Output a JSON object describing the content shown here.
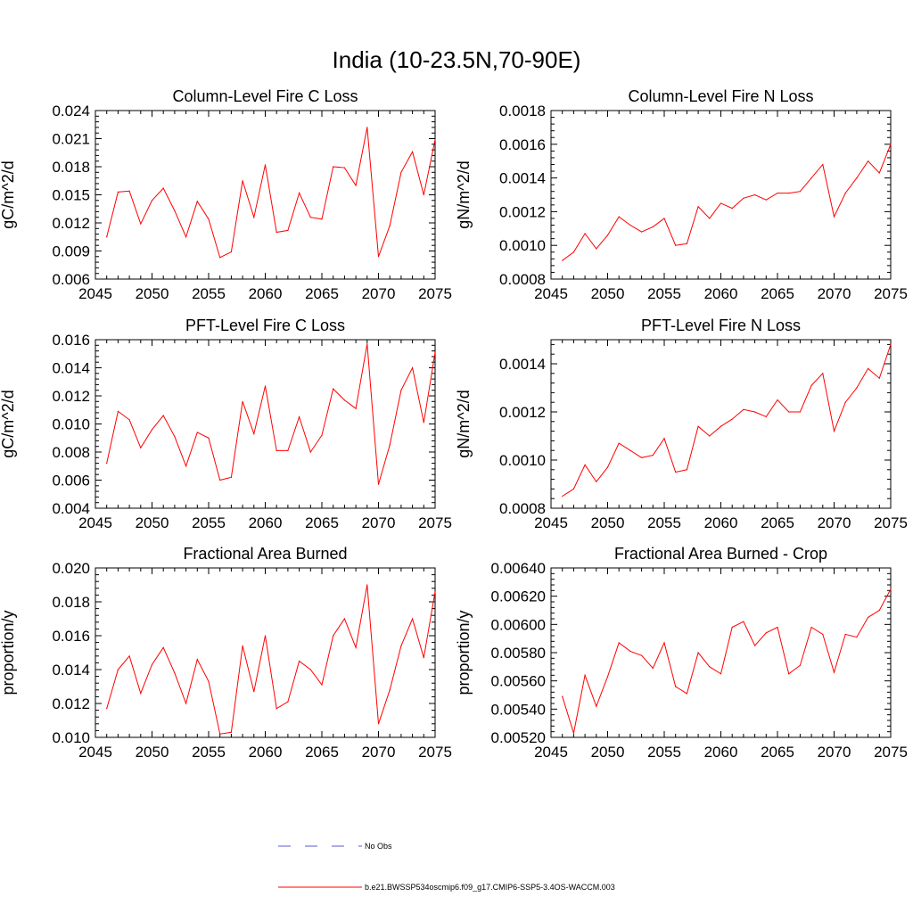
{
  "figure": {
    "title": "India (10-23.5N,70-90E)"
  },
  "legend": {
    "placement": "bottom-center",
    "entries": [
      {
        "label": "No Obs",
        "color": "#5a5ad0",
        "style": "dashed"
      },
      {
        "label": "b.e21.BWSSP534oscmip6.f09_g17.CMIP6-SSP5-3.4OS-WACCM.003",
        "color": "#ff0000",
        "style": "solid"
      }
    ]
  },
  "chart_data": [
    {
      "type": "line",
      "title": "Column-Level Fire C Loss",
      "ylabel": "gC/m^2/d",
      "xlim": [
        2045,
        2075
      ],
      "ylim": [
        0.006,
        0.024
      ],
      "xticks": [
        "2045",
        "2050",
        "2055",
        "2060",
        "2065",
        "2070",
        "2075"
      ],
      "yticks": [
        "0.006",
        "0.009",
        "0.012",
        "0.015",
        "0.018",
        "0.021",
        "0.024"
      ],
      "series": [
        {
          "name": "b.e21.BWSSP534oscmip6.f09_g17.CMIP6-SSP5-3.4OS-WACCM.003",
          "color": "#ff0000",
          "x": [
            2046,
            2047,
            2048,
            2049,
            2050,
            2051,
            2052,
            2053,
            2054,
            2055,
            2056,
            2057,
            2058,
            2059,
            2060,
            2061,
            2062,
            2063,
            2064,
            2065,
            2066,
            2067,
            2068,
            2069,
            2070,
            2071,
            2072,
            2073,
            2074,
            2075
          ],
          "values": [
            0.0105,
            0.0153,
            0.0154,
            0.0119,
            0.0144,
            0.0157,
            0.0133,
            0.0105,
            0.0143,
            0.0124,
            0.0083,
            0.0089,
            0.0165,
            0.0126,
            0.0182,
            0.011,
            0.0112,
            0.0152,
            0.0126,
            0.0124,
            0.018,
            0.0179,
            0.016,
            0.0222,
            0.0084,
            0.0117,
            0.0174,
            0.0196,
            0.015,
            0.0209
          ]
        }
      ]
    },
    {
      "type": "line",
      "title": "Column-Level Fire N Loss",
      "ylabel": "gN/m^2/d",
      "xlim": [
        2045,
        2075
      ],
      "ylim": [
        0.0008,
        0.0018
      ],
      "xticks": [
        "2045",
        "2050",
        "2055",
        "2060",
        "2065",
        "2070",
        "2075"
      ],
      "yticks": [
        "0.0008",
        "0.0010",
        "0.0012",
        "0.0014",
        "0.0016",
        "0.0018"
      ],
      "series": [
        {
          "name": "b.e21.BWSSP534oscmip6.f09_g17.CMIP6-SSP5-3.4OS-WACCM.003",
          "color": "#ff0000",
          "x": [
            2046,
            2047,
            2048,
            2049,
            2050,
            2051,
            2052,
            2053,
            2054,
            2055,
            2056,
            2057,
            2058,
            2059,
            2060,
            2061,
            2062,
            2063,
            2064,
            2065,
            2066,
            2067,
            2068,
            2069,
            2070,
            2071,
            2072,
            2073,
            2074,
            2075
          ],
          "values": [
            0.00091,
            0.00096,
            0.00107,
            0.00098,
            0.00106,
            0.00117,
            0.00112,
            0.00108,
            0.00111,
            0.00116,
            0.001,
            0.00101,
            0.00123,
            0.00116,
            0.00125,
            0.00122,
            0.00128,
            0.0013,
            0.00127,
            0.00131,
            0.00131,
            0.00132,
            0.0014,
            0.00148,
            0.00117,
            0.00131,
            0.0014,
            0.0015,
            0.00143,
            0.0016
          ]
        }
      ]
    },
    {
      "type": "line",
      "title": "PFT-Level Fire C Loss",
      "ylabel": "gC/m^2/d",
      "xlim": [
        2045,
        2075
      ],
      "ylim": [
        0.004,
        0.016
      ],
      "xticks": [
        "2045",
        "2050",
        "2055",
        "2060",
        "2065",
        "2070",
        "2075"
      ],
      "yticks": [
        "0.004",
        "0.006",
        "0.008",
        "0.010",
        "0.012",
        "0.014",
        "0.016"
      ],
      "series": [
        {
          "name": "b.e21.BWSSP534oscmip6.f09_g17.CMIP6-SSP5-3.4OS-WACCM.003",
          "color": "#ff0000",
          "x": [
            2046,
            2047,
            2048,
            2049,
            2050,
            2051,
            2052,
            2053,
            2054,
            2055,
            2056,
            2057,
            2058,
            2059,
            2060,
            2061,
            2062,
            2063,
            2064,
            2065,
            2066,
            2067,
            2068,
            2069,
            2070,
            2071,
            2072,
            2073,
            2074,
            2075
          ],
          "values": [
            0.0072,
            0.0109,
            0.0103,
            0.0083,
            0.0096,
            0.0106,
            0.0091,
            0.007,
            0.0094,
            0.009,
            0.006,
            0.0062,
            0.0116,
            0.0093,
            0.0127,
            0.0081,
            0.0081,
            0.0105,
            0.008,
            0.0092,
            0.0125,
            0.0117,
            0.0111,
            0.0157,
            0.0057,
            0.0085,
            0.0124,
            0.014,
            0.0101,
            0.0151
          ]
        }
      ]
    },
    {
      "type": "line",
      "title": "PFT-Level Fire N Loss",
      "ylabel": "gN/m^2/d",
      "xlim": [
        2045,
        2075
      ],
      "ylim": [
        0.0008,
        0.0015
      ],
      "xticks": [
        "2045",
        "2050",
        "2055",
        "2060",
        "2065",
        "2070",
        "2075"
      ],
      "yticks": [
        "0.0008",
        "0.0010",
        "0.0012",
        "0.0014"
      ],
      "series": [
        {
          "name": "b.e21.BWSSP534oscmip6.f09_g17.CMIP6-SSP5-3.4OS-WACCM.003",
          "color": "#ff0000",
          "x": [
            2046,
            2047,
            2048,
            2049,
            2050,
            2051,
            2052,
            2053,
            2054,
            2055,
            2056,
            2057,
            2058,
            2059,
            2060,
            2061,
            2062,
            2063,
            2064,
            2065,
            2066,
            2067,
            2068,
            2069,
            2070,
            2071,
            2072,
            2073,
            2074,
            2075
          ],
          "values": [
            0.00085,
            0.00088,
            0.00098,
            0.00091,
            0.00097,
            0.00107,
            0.00104,
            0.00101,
            0.00102,
            0.00109,
            0.00095,
            0.00096,
            0.00114,
            0.0011,
            0.00114,
            0.00117,
            0.00121,
            0.0012,
            0.00118,
            0.00125,
            0.0012,
            0.0012,
            0.00131,
            0.00136,
            0.00112,
            0.00124,
            0.0013,
            0.00138,
            0.00134,
            0.00148
          ]
        }
      ]
    },
    {
      "type": "line",
      "title": "Fractional Area Burned",
      "ylabel": "proportion/y",
      "xlim": [
        2045,
        2075
      ],
      "ylim": [
        0.01,
        0.02
      ],
      "xticks": [
        "2045",
        "2050",
        "2055",
        "2060",
        "2065",
        "2070",
        "2075"
      ],
      "yticks": [
        "0.010",
        "0.012",
        "0.014",
        "0.016",
        "0.018",
        "0.020"
      ],
      "series": [
        {
          "name": "b.e21.BWSSP534oscmip6.f09_g17.CMIP6-SSP5-3.4OS-WACCM.003",
          "color": "#ff0000",
          "x": [
            2046,
            2047,
            2048,
            2049,
            2050,
            2051,
            2052,
            2053,
            2054,
            2055,
            2056,
            2057,
            2058,
            2059,
            2060,
            2061,
            2062,
            2063,
            2064,
            2065,
            2066,
            2067,
            2068,
            2069,
            2070,
            2071,
            2072,
            2073,
            2074,
            2075
          ],
          "values": [
            0.0117,
            0.014,
            0.0148,
            0.0126,
            0.0143,
            0.0153,
            0.0138,
            0.012,
            0.0146,
            0.0133,
            0.0102,
            0.0103,
            0.0154,
            0.0127,
            0.016,
            0.0117,
            0.0121,
            0.0145,
            0.014,
            0.0131,
            0.016,
            0.017,
            0.0153,
            0.019,
            0.0108,
            0.0128,
            0.0154,
            0.017,
            0.0147,
            0.0186
          ]
        }
      ]
    },
    {
      "type": "line",
      "title": "Fractional Area Burned - Crop",
      "ylabel": "proportion/y",
      "xlim": [
        2045,
        2075
      ],
      "ylim": [
        0.0052,
        0.0064
      ],
      "xticks": [
        "2045",
        "2050",
        "2055",
        "2060",
        "2065",
        "2070",
        "2075"
      ],
      "yticks": [
        "0.00520",
        "0.00540",
        "0.00560",
        "0.00580",
        "0.00600",
        "0.00620",
        "0.00640"
      ],
      "series": [
        {
          "name": "b.e21.BWSSP534oscmip6.f09_g17.CMIP6-SSP5-3.4OS-WACCM.003",
          "color": "#ff0000",
          "x": [
            2046,
            2047,
            2048,
            2049,
            2050,
            2051,
            2052,
            2053,
            2054,
            2055,
            2056,
            2057,
            2058,
            2059,
            2060,
            2061,
            2062,
            2063,
            2064,
            2065,
            2066,
            2067,
            2068,
            2069,
            2070,
            2071,
            2072,
            2073,
            2074,
            2075
          ],
          "values": [
            0.00549,
            0.00523,
            0.00564,
            0.00542,
            0.00563,
            0.00587,
            0.00581,
            0.00578,
            0.00569,
            0.00587,
            0.00556,
            0.00551,
            0.0058,
            0.0057,
            0.00565,
            0.00598,
            0.00602,
            0.00585,
            0.00594,
            0.00598,
            0.00565,
            0.00571,
            0.00598,
            0.00593,
            0.00566,
            0.00593,
            0.00591,
            0.00605,
            0.0061,
            0.00625
          ]
        }
      ]
    }
  ]
}
